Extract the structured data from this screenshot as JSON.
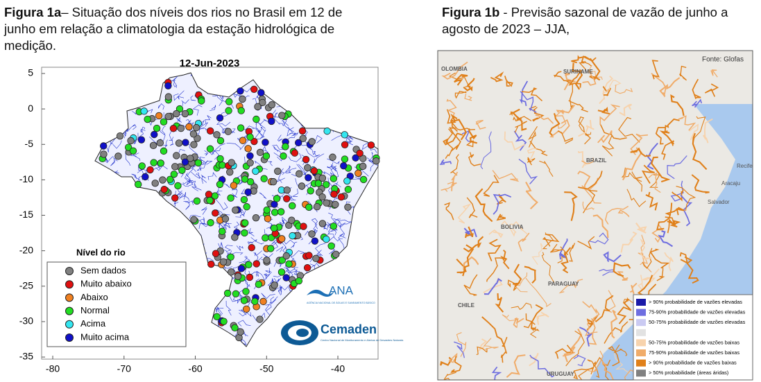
{
  "figure_1a": {
    "label": "Figura 1a",
    "caption": "– Situação dos níveis dos rios no Brasil em 12 de junho em relação a climatologia da estação hidrológica de medição.",
    "title": "12-Jun-2023",
    "xlim": [
      -81.56,
      -34.36
    ],
    "ylim": [
      -35.29,
      5.88
    ],
    "xticks": [
      -80,
      -70,
      -60,
      -50,
      -40
    ],
    "yticks": [
      5,
      0,
      -5,
      -10,
      -15,
      -20,
      -25,
      -30,
      -35
    ],
    "legend": {
      "title": "Nível do rio",
      "items": [
        {
          "label": "Sem dados",
          "color": "#808080"
        },
        {
          "label": "Muito abaixo",
          "color": "#e01010"
        },
        {
          "label": "Abaixo",
          "color": "#f08020"
        },
        {
          "label": "Normal",
          "color": "#22dd22"
        },
        {
          "label": "Acima",
          "color": "#33e6f0"
        },
        {
          "label": "Muito acima",
          "color": "#1010c8"
        }
      ]
    },
    "logos": {
      "ana": "ANA",
      "ana_sub": "AGÊNCIA NACIONAL DE ÁGUAS E SANEAMENTO BÁSICO",
      "cemaden": "Cemaden",
      "cemaden_sub": "Centro Nacional de Monitoramento e Alertas de Desastres Naturais"
    }
  },
  "figure_1b": {
    "label": "Figura 1b",
    "caption": " -  Previsão sazonal de vazão de junho a agosto de 2023 – JJA,",
    "source": "Fonte: Glofas",
    "legend": [
      {
        "label": "> 90% probabilidade de vazões elevadas",
        "color": "#1a1aa8"
      },
      {
        "label": "75-90% probabilidade de vazões elevadas",
        "color": "#6e6ee0"
      },
      {
        "label": "50-75% probabilidade de vazões elevadas",
        "color": "#cacaf2"
      },
      {
        "color": "#e2e2e2"
      },
      {
        "label": "50-75% probabilidade de vazões baixas",
        "color": "#f7d3ad"
      },
      {
        "label": "75-90% probabilidade de vazões baixas",
        "color": "#f0ac6a"
      },
      {
        "label": "> 90% probabilidade de vazões baixas",
        "color": "#e0801a"
      },
      {
        "label": "> 50% probabilidade (áreas áridas)",
        "color": "#808080"
      }
    ],
    "place_labels": [
      "OLOMBIA",
      "SURINAME",
      "BRAZIL",
      "BOLIVIA",
      "PARAGUAY",
      "CHILE",
      "URUGUAY",
      "Recife",
      "Salvador",
      "Aracaju"
    ]
  }
}
